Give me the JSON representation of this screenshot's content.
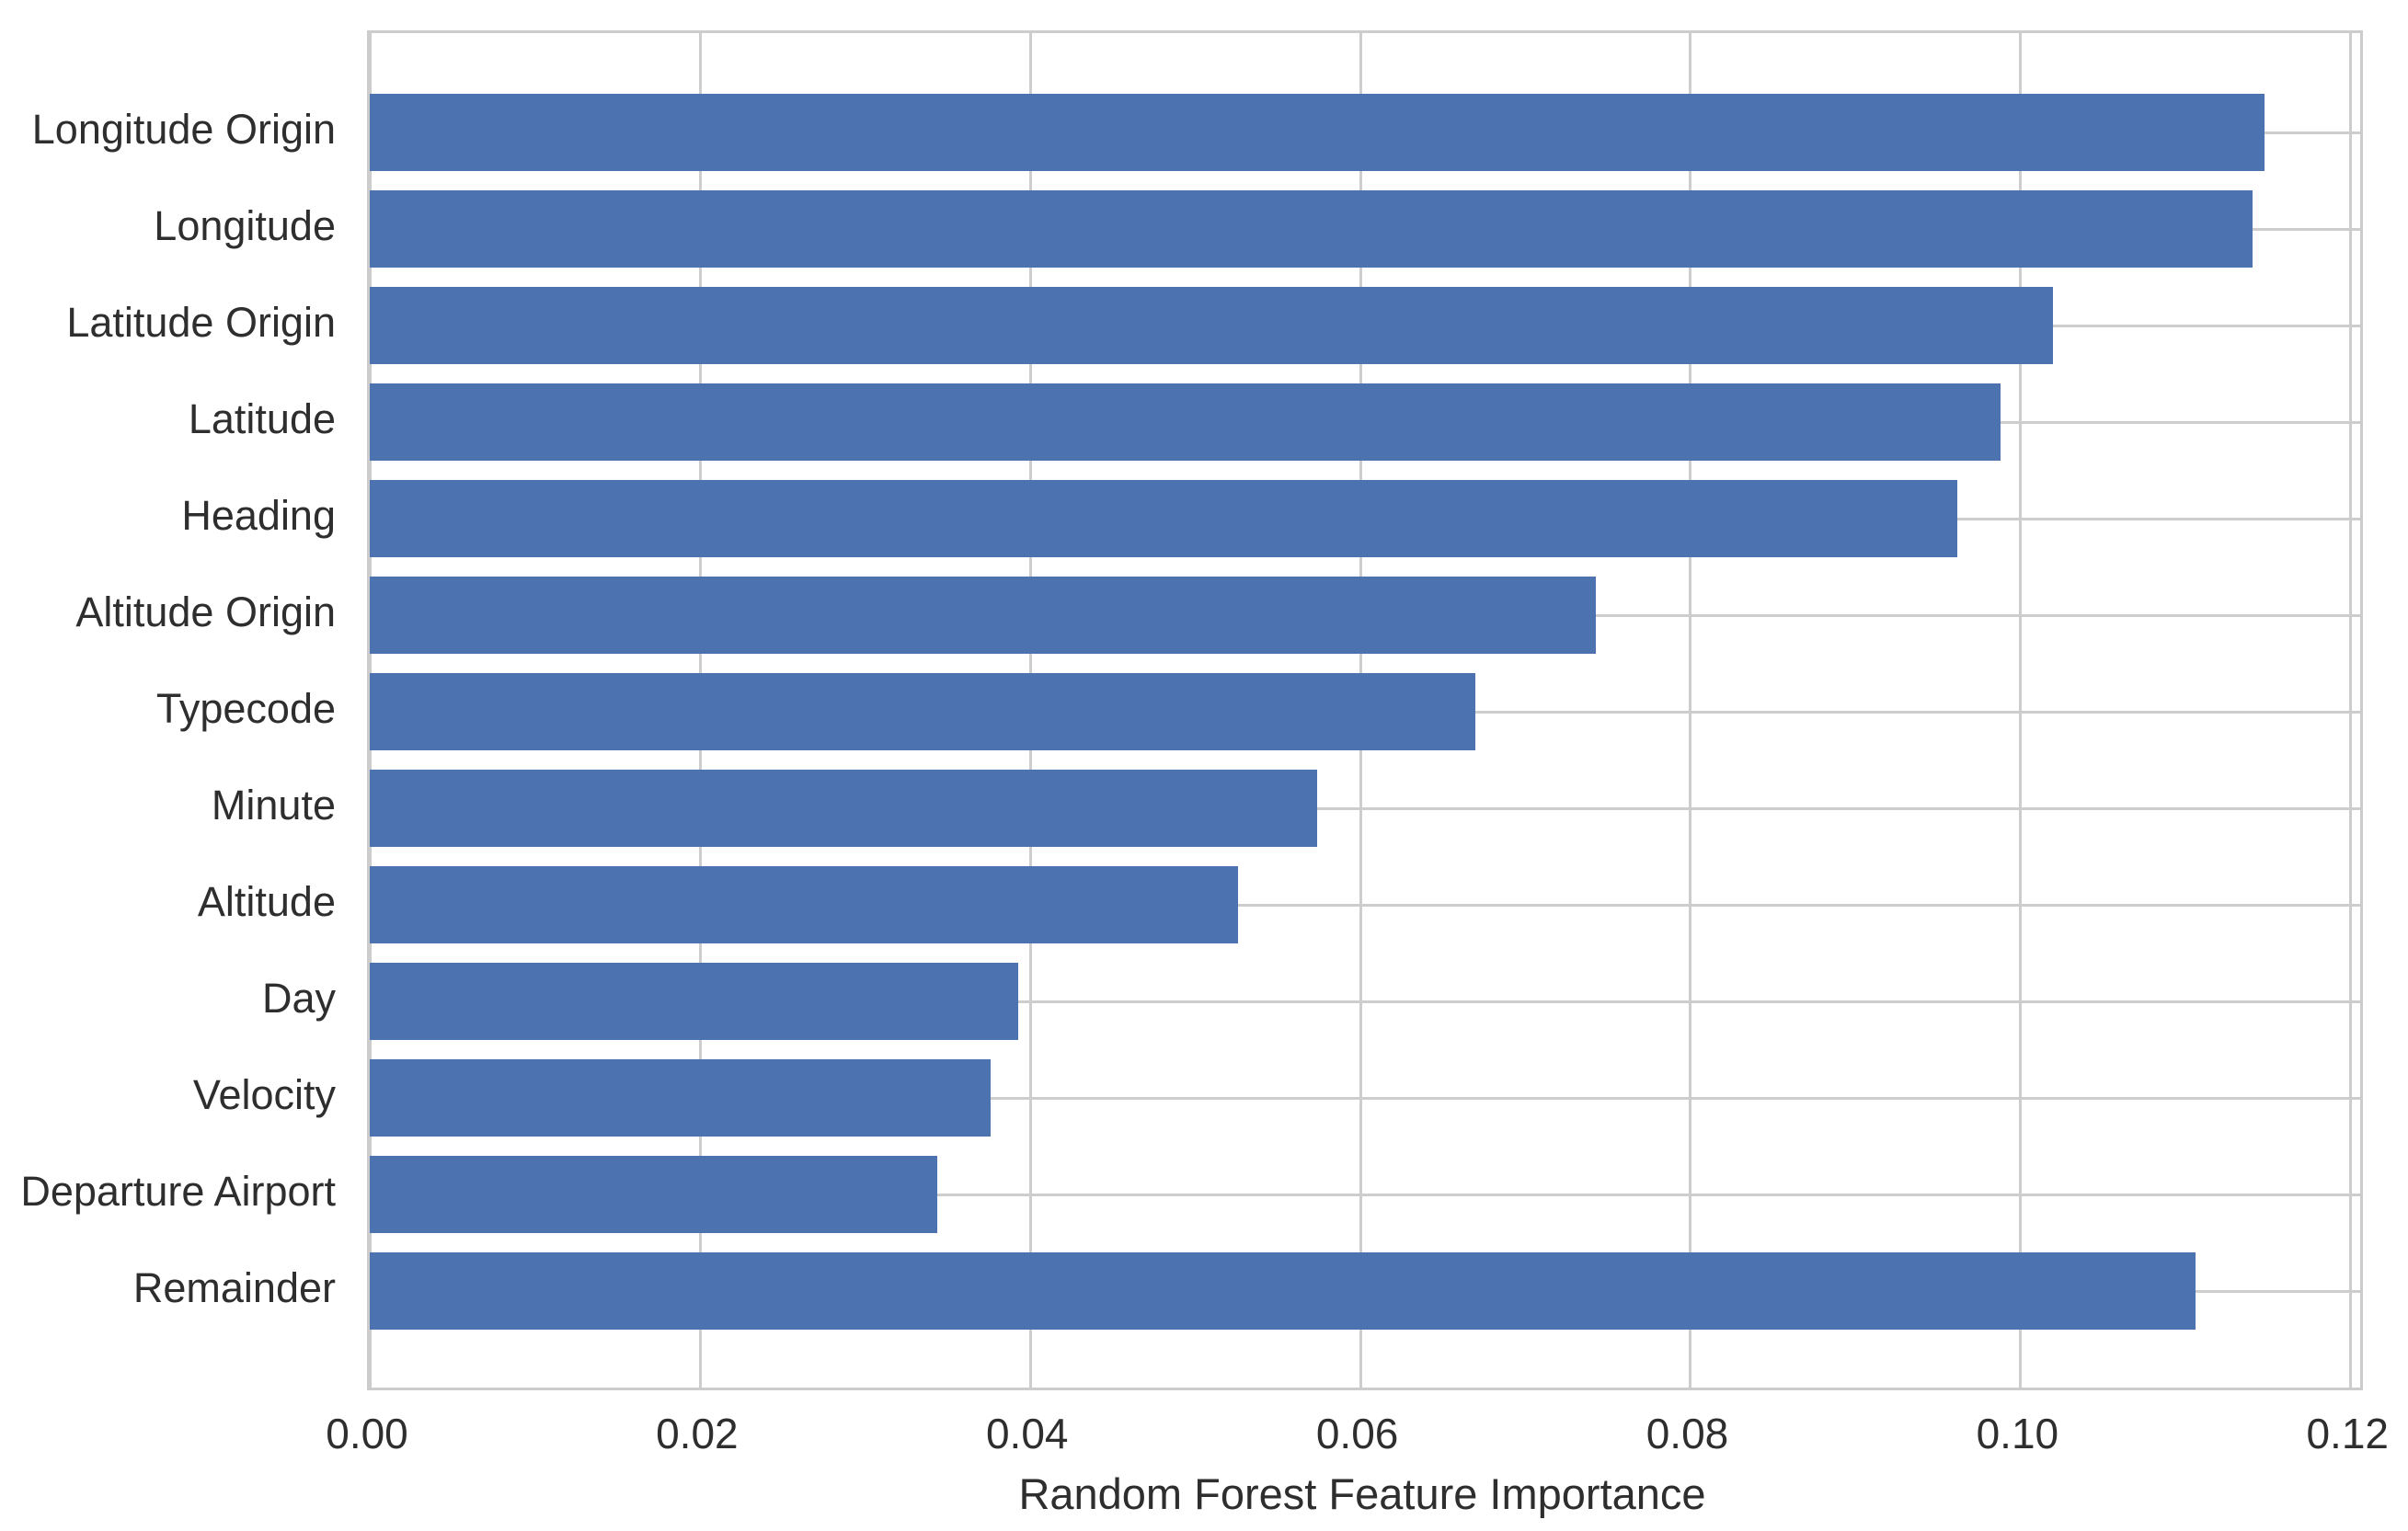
{
  "figure": {
    "background_color": "#ffffff"
  },
  "chart_data": {
    "type": "bar",
    "orientation": "horizontal",
    "title": "",
    "xlabel": "Random Forest Feature Importance",
    "ylabel": "",
    "categories": [
      "Longitude Origin",
      "Longitude",
      "Latitude Origin",
      "Latitude",
      "Heading",
      "Altitude Origin",
      "Typecode",
      "Minute",
      "Altitude",
      "Day",
      "Velocity",
      "Departure Airport",
      "Remainder"
    ],
    "values": [
      0.1148,
      0.1141,
      0.102,
      0.0988,
      0.0962,
      0.0743,
      0.067,
      0.0574,
      0.0526,
      0.0393,
      0.0376,
      0.0344,
      0.1106
    ],
    "xlim": [
      0,
      0.1206
    ],
    "xticks": [
      0.0,
      0.02,
      0.04,
      0.06,
      0.08,
      0.1,
      0.12
    ],
    "xtick_labels": [
      "0.00",
      "0.02",
      "0.04",
      "0.06",
      "0.08",
      "0.10",
      "0.12"
    ],
    "grid": true,
    "legend_position": "none",
    "bar_color": "#4c72b0",
    "grid_color": "#cdcdcd",
    "spine_color": "#cccccc",
    "text_color": "#2e2e2e"
  }
}
